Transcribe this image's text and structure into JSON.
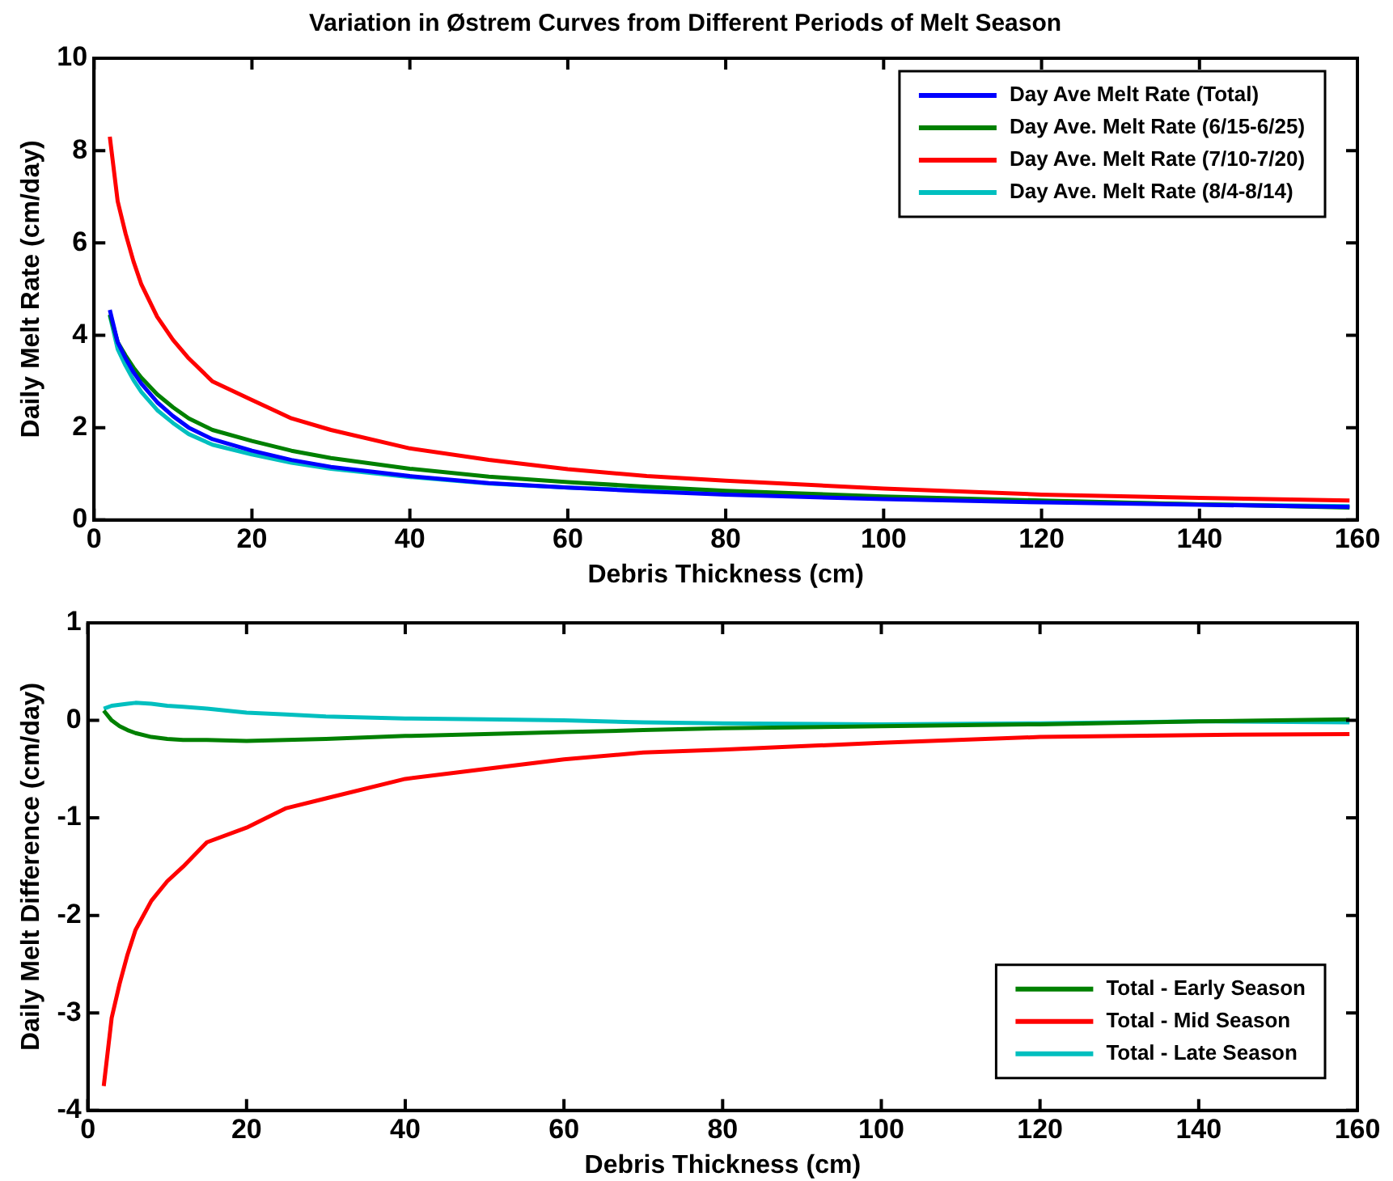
{
  "chart_data": [
    {
      "type": "line",
      "title": "Variation in Østrem Curves from Different Periods of Melt Season",
      "xlabel": "Debris Thickness (cm)",
      "ylabel": "Daily Melt Rate (cm/day)",
      "x": [
        2,
        3,
        4,
        5,
        6,
        8,
        10,
        12,
        15,
        20,
        25,
        30,
        40,
        50,
        60,
        70,
        80,
        100,
        120,
        140,
        159
      ],
      "series": [
        {
          "name": "Day Ave Melt Rate (Total)",
          "color": "#0000ff",
          "values": [
            4.55,
            3.85,
            3.5,
            3.2,
            2.95,
            2.55,
            2.25,
            2.0,
            1.75,
            1.5,
            1.3,
            1.15,
            0.95,
            0.8,
            0.7,
            0.62,
            0.55,
            0.45,
            0.38,
            0.33,
            0.28
          ]
        },
        {
          "name": "Day Ave. Melt Rate (6/15-6/25)",
          "color": "#008000",
          "values": [
            4.45,
            3.85,
            3.56,
            3.3,
            3.08,
            2.72,
            2.44,
            2.2,
            1.95,
            1.71,
            1.5,
            1.34,
            1.11,
            0.94,
            0.82,
            0.72,
            0.63,
            0.51,
            0.42,
            0.34,
            0.27
          ]
        },
        {
          "name": "Day Ave. Melt Rate (7/10-7/20)",
          "color": "#ff0000",
          "values": [
            8.3,
            6.9,
            6.2,
            5.6,
            5.1,
            4.4,
            3.9,
            3.5,
            3.0,
            2.6,
            2.2,
            1.95,
            1.55,
            1.3,
            1.1,
            0.95,
            0.85,
            0.68,
            0.55,
            0.48,
            0.42
          ]
        },
        {
          "name": "Day Ave. Melt Rate (8/4-8/14)",
          "color": "#00bfbf",
          "values": [
            4.43,
            3.7,
            3.34,
            3.03,
            2.77,
            2.38,
            2.1,
            1.86,
            1.63,
            1.42,
            1.24,
            1.11,
            0.93,
            0.79,
            0.7,
            0.64,
            0.58,
            0.49,
            0.41,
            0.34,
            0.3
          ]
        }
      ],
      "xlim": [
        0,
        160
      ],
      "xticks": [
        0,
        20,
        40,
        60,
        80,
        100,
        120,
        140,
        160
      ],
      "ylim": [
        0,
        10
      ],
      "yticks": [
        0,
        2,
        4,
        6,
        8,
        10
      ],
      "legend": "top right"
    },
    {
      "type": "line",
      "xlabel": "Debris Thickness (cm)",
      "ylabel": "Daily Melt Difference (cm/day)",
      "x": [
        2,
        3,
        4,
        5,
        6,
        8,
        10,
        12,
        15,
        20,
        25,
        30,
        40,
        50,
        60,
        70,
        80,
        100,
        120,
        140,
        159
      ],
      "series": [
        {
          "name": "Total - Early Season",
          "color": "#008000",
          "values": [
            0.1,
            0.0,
            -0.06,
            -0.1,
            -0.13,
            -0.17,
            -0.19,
            -0.2,
            -0.2,
            -0.21,
            -0.2,
            -0.19,
            -0.16,
            -0.14,
            -0.12,
            -0.1,
            -0.08,
            -0.06,
            -0.04,
            -0.01,
            0.01
          ]
        },
        {
          "name": "Total - Mid Season",
          "color": "#ff0000",
          "values": [
            -3.75,
            -3.05,
            -2.7,
            -2.4,
            -2.15,
            -1.85,
            -1.65,
            -1.5,
            -1.25,
            -1.1,
            -0.9,
            -0.8,
            -0.6,
            -0.5,
            -0.4,
            -0.33,
            -0.3,
            -0.23,
            -0.17,
            -0.15,
            -0.14
          ]
        },
        {
          "name": "Total - Late Season",
          "color": "#00bfbf",
          "values": [
            0.12,
            0.15,
            0.16,
            0.17,
            0.18,
            0.17,
            0.15,
            0.14,
            0.12,
            0.08,
            0.06,
            0.04,
            0.02,
            0.01,
            0,
            -0.02,
            -0.03,
            -0.04,
            -0.03,
            -0.01,
            -0.02
          ]
        }
      ],
      "xlim": [
        0,
        160
      ],
      "xticks": [
        0,
        20,
        40,
        60,
        80,
        100,
        120,
        140,
        160
      ],
      "ylim": [
        -4,
        1
      ],
      "yticks": [
        -4,
        -3,
        -2,
        -1,
        0,
        1
      ],
      "legend": "bottom right"
    }
  ]
}
